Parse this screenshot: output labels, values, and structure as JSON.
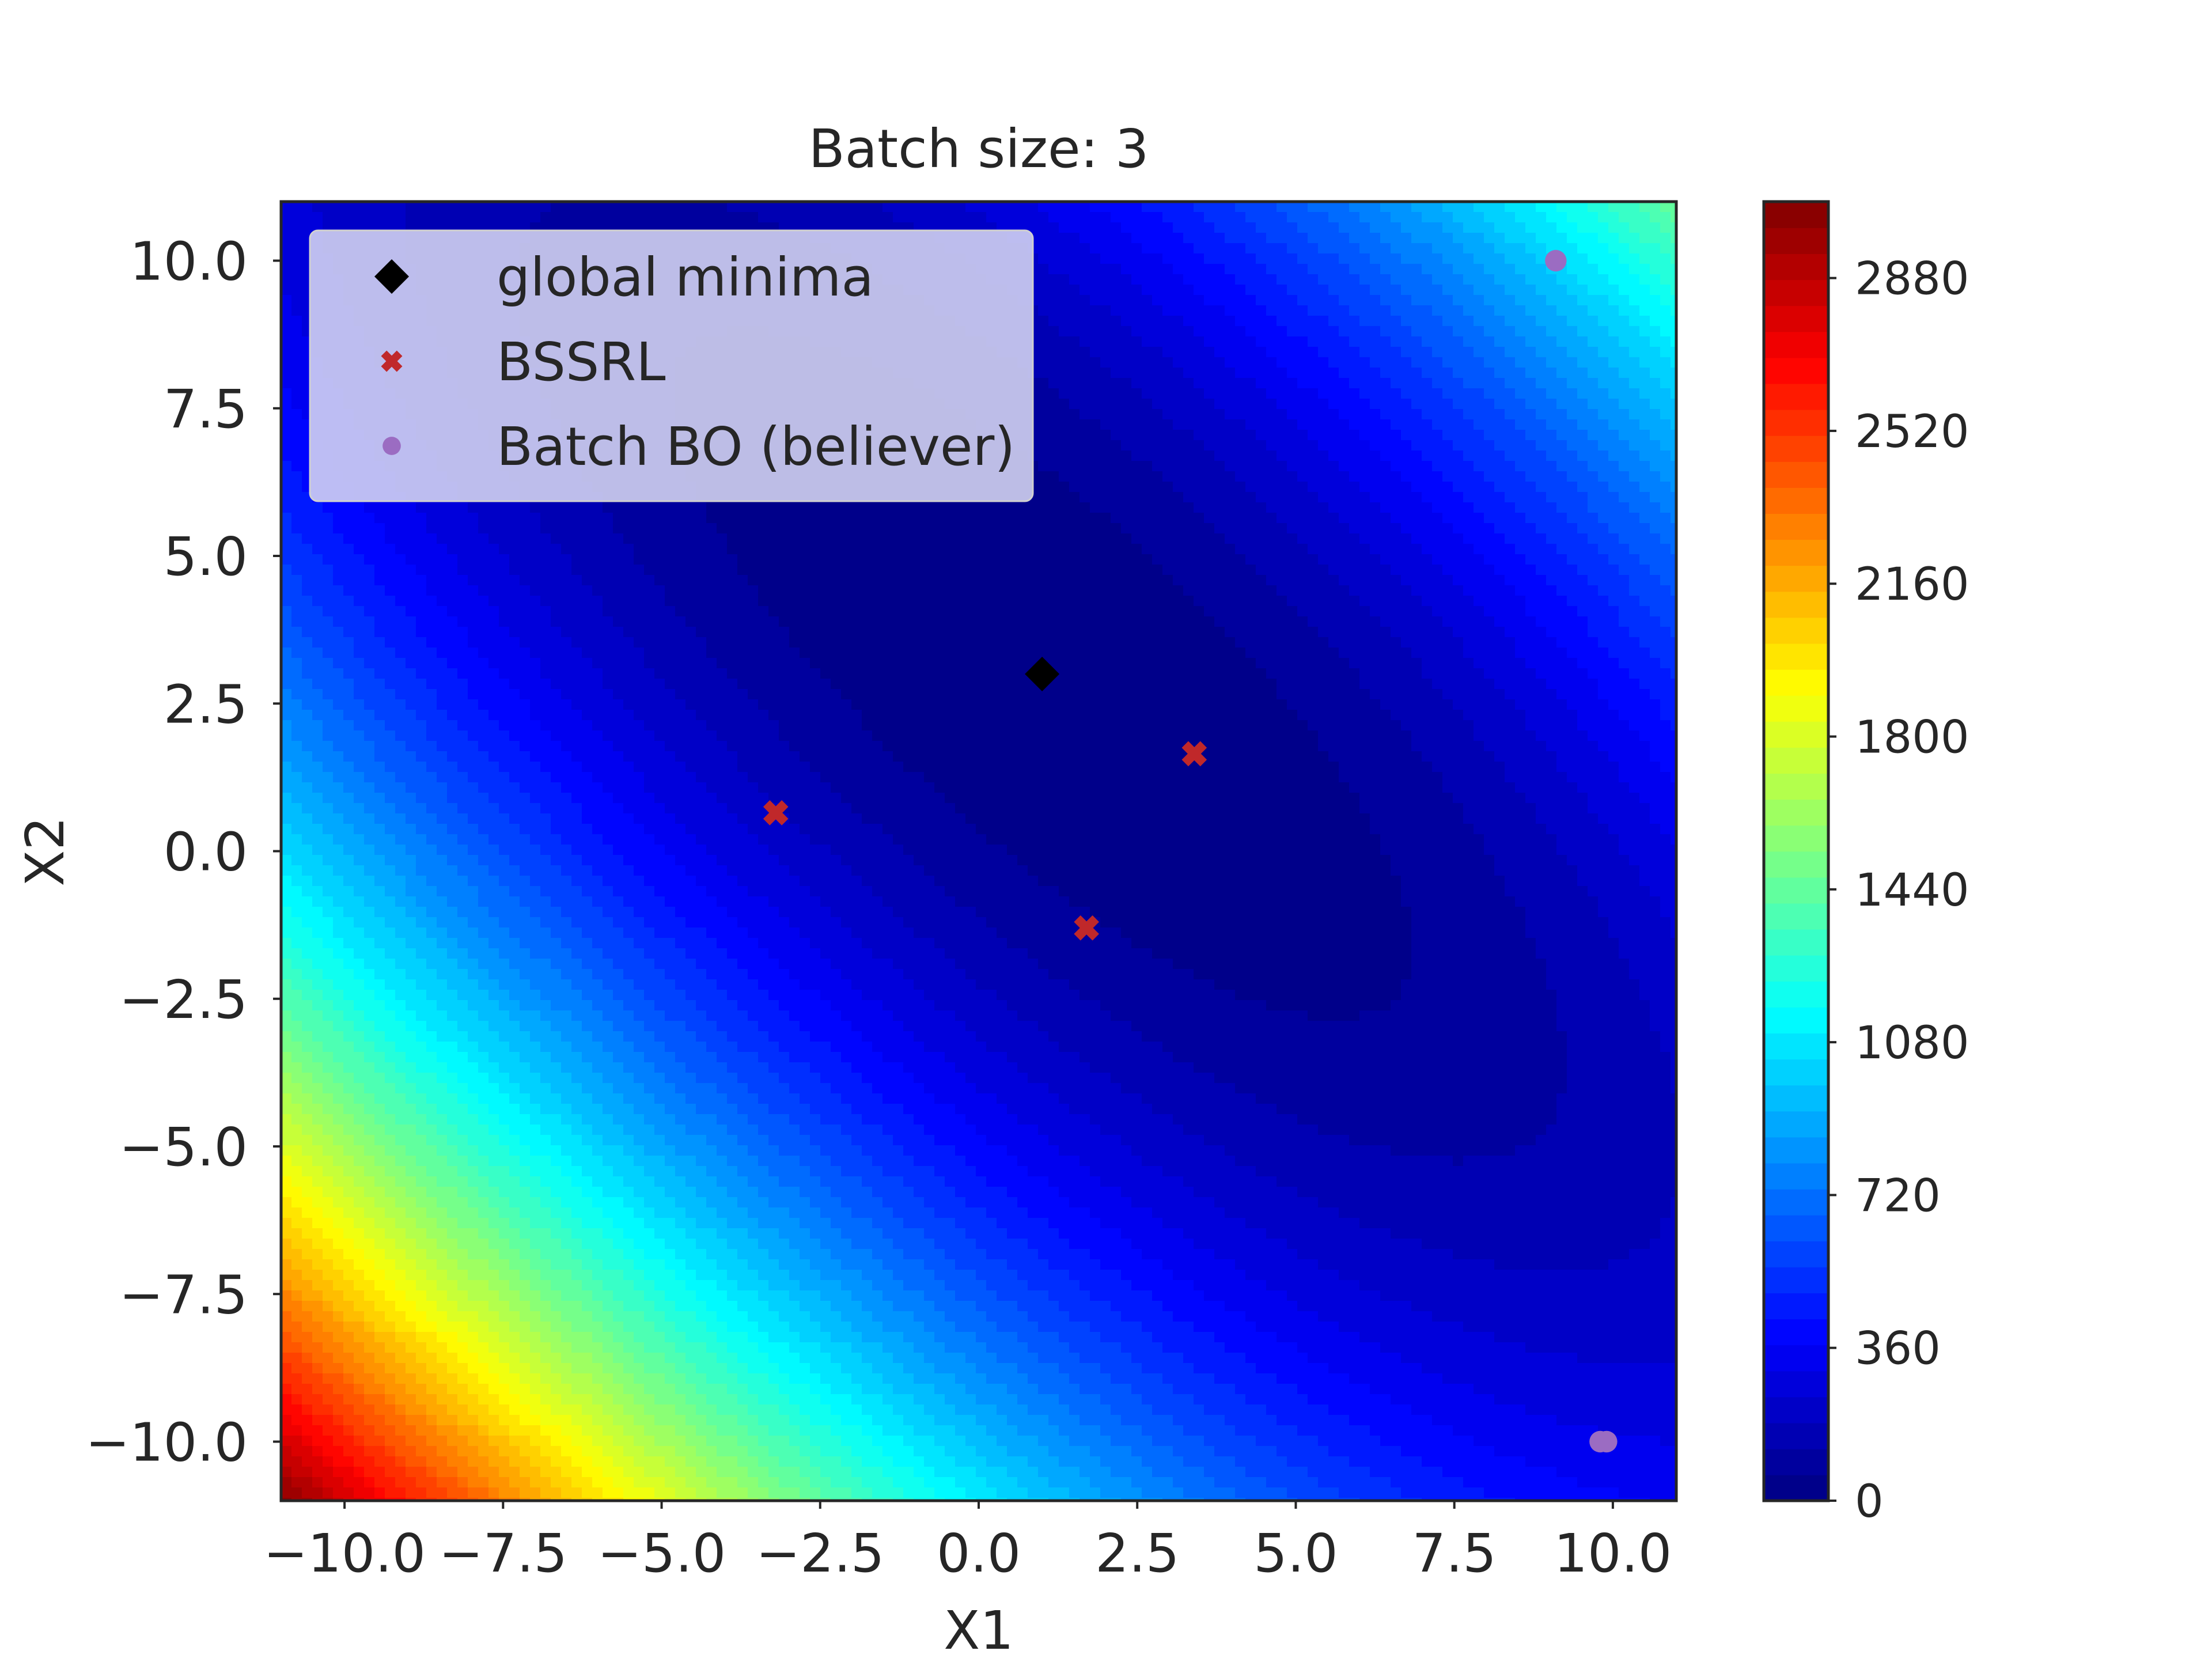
{
  "chart_data": {
    "type": "heatmap",
    "title": "Batch size: 3",
    "xlabel": "X1",
    "ylabel": "X2",
    "xlim": [
      -11,
      11
    ],
    "ylim": [
      -11,
      11
    ],
    "x_ticks": [
      {
        "value": -10.0,
        "label": "−10.0"
      },
      {
        "value": -7.5,
        "label": "−7.5"
      },
      {
        "value": -5.0,
        "label": "−5.0"
      },
      {
        "value": -2.5,
        "label": "−2.5"
      },
      {
        "value": 0.0,
        "label": "0.0"
      },
      {
        "value": 2.5,
        "label": "2.5"
      },
      {
        "value": 5.0,
        "label": "5.0"
      },
      {
        "value": 7.5,
        "label": "7.5"
      },
      {
        "value": 10.0,
        "label": "10.0"
      }
    ],
    "y_ticks": [
      {
        "value": 10.0,
        "label": "10.0"
      },
      {
        "value": 7.5,
        "label": "7.5"
      },
      {
        "value": 5.0,
        "label": "5.0"
      },
      {
        "value": 2.5,
        "label": "2.5"
      },
      {
        "value": 0.0,
        "label": "0.0"
      },
      {
        "value": -2.5,
        "label": "−2.5"
      },
      {
        "value": -5.0,
        "label": "−5.0"
      },
      {
        "value": -7.5,
        "label": "−7.5"
      },
      {
        "value": -10.0,
        "label": "−10.0"
      }
    ],
    "colorbar": {
      "colormap": "jet",
      "vmin": 0,
      "vmax": 3060,
      "levels": 50,
      "ticks": [
        {
          "value": 0,
          "label": "0"
        },
        {
          "value": 360,
          "label": "360"
        },
        {
          "value": 720,
          "label": "720"
        },
        {
          "value": 1080,
          "label": "1080"
        },
        {
          "value": 1440,
          "label": "1440"
        },
        {
          "value": 1800,
          "label": "1800"
        },
        {
          "value": 2160,
          "label": "2160"
        },
        {
          "value": 2520,
          "label": "2520"
        },
        {
          "value": 2880,
          "label": "2880"
        }
      ]
    },
    "grid": false,
    "legend_position": "top-left",
    "series": [
      {
        "name": "global minima",
        "marker": "diamond",
        "color": "#000000",
        "points": [
          {
            "x": 1.0,
            "y": 3.0
          }
        ]
      },
      {
        "name": "BSSRL",
        "marker": "x",
        "color": "#c0282a",
        "points": [
          {
            "x": -3.2,
            "y": 0.65
          },
          {
            "x": 3.4,
            "y": 1.65
          },
          {
            "x": 1.7,
            "y": -1.3
          }
        ]
      },
      {
        "name": "Batch BO (believer)",
        "marker": "circle",
        "color": "#9b6cc2",
        "points": [
          {
            "x": 9.1,
            "y": 10.0
          },
          {
            "x": 9.8,
            "y": -10.0
          },
          {
            "x": 9.9,
            "y": -10.0
          }
        ]
      }
    ]
  }
}
